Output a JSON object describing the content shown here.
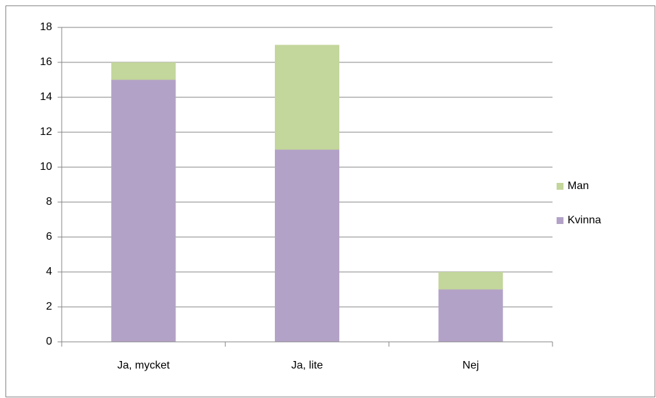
{
  "chart_data": {
    "type": "stacked_bar",
    "categories": [
      "Ja, mycket",
      "Ja, lite",
      "Nej"
    ],
    "series": [
      {
        "name": "Kvinna",
        "color": "#b3a2c7",
        "values": [
          15,
          11,
          3
        ]
      },
      {
        "name": "Man",
        "color": "#c3d69b",
        "values": [
          1,
          6,
          1
        ]
      }
    ],
    "ylim": [
      0,
      18
    ],
    "yticks": [
      0,
      2,
      4,
      6,
      8,
      10,
      12,
      14,
      16,
      18
    ],
    "grid": true,
    "legend": "right"
  }
}
